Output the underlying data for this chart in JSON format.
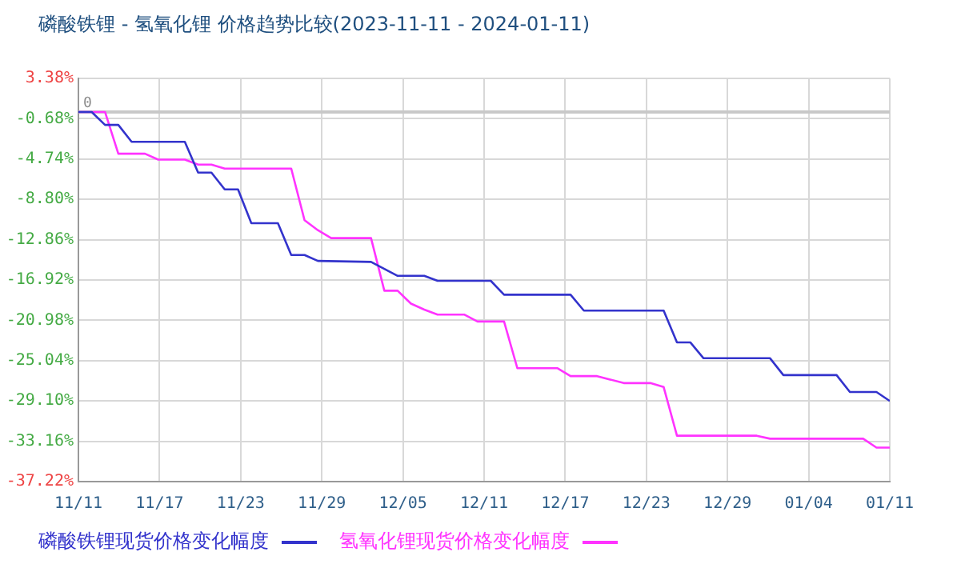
{
  "chart_data": {
    "type": "line",
    "title": "磷酸铁锂 - 氢氧化锂 价格趋势比较(2023-11-11 - 2024-01-11)",
    "series": [
      {
        "name": "磷酸铁锂现货价格变化幅度",
        "color": "#3333cc",
        "x": [
          "2023-11-11",
          "2023-11-12",
          "2023-11-13",
          "2023-11-14",
          "2023-11-15",
          "2023-11-19",
          "2023-11-20",
          "2023-11-21",
          "2023-11-22",
          "2023-11-23",
          "2023-11-24",
          "2023-11-26",
          "2023-11-27",
          "2023-11-28",
          "2023-11-29",
          "2023-12-03",
          "2023-12-05",
          "2023-12-07",
          "2023-12-08",
          "2023-12-12",
          "2023-12-13",
          "2023-12-18",
          "2023-12-19",
          "2023-12-25",
          "2023-12-26",
          "2023-12-27",
          "2023-12-28",
          "2024-01-02",
          "2024-01-03",
          "2024-01-07",
          "2024-01-08",
          "2024-01-10",
          "2024-01-11"
        ],
        "values": [
          0,
          0,
          -1.3,
          -1.3,
          -3.0,
          -3.0,
          -6.1,
          -6.1,
          -7.8,
          -7.8,
          -11.2,
          -11.2,
          -14.4,
          -14.4,
          -15.0,
          -15.1,
          -16.5,
          -16.5,
          -17.0,
          -17.0,
          -18.4,
          -18.4,
          -20.0,
          -20.0,
          -23.2,
          -23.2,
          -24.8,
          -24.8,
          -26.5,
          -26.5,
          -28.2,
          -28.2,
          -29.1
        ]
      },
      {
        "name": "氢氧化锂现货价格变化幅度",
        "color": "#ff33ff",
        "x": [
          "2023-11-11",
          "2023-11-13",
          "2023-11-14",
          "2023-11-16",
          "2023-11-17",
          "2023-11-19",
          "2023-11-20",
          "2023-11-21",
          "2023-11-22",
          "2023-11-27",
          "2023-11-28",
          "2023-11-29",
          "2023-11-30",
          "2023-12-03",
          "2023-12-04",
          "2023-12-05",
          "2023-12-06",
          "2023-12-07",
          "2023-12-08",
          "2023-12-10",
          "2023-12-11",
          "2023-12-13",
          "2023-12-14",
          "2023-12-17",
          "2023-12-18",
          "2023-12-20",
          "2023-12-22",
          "2023-12-24",
          "2023-12-25",
          "2023-12-26",
          "2024-01-01",
          "2024-01-02",
          "2024-01-09",
          "2024-01-10",
          "2024-01-11"
        ],
        "values": [
          0,
          0,
          -4.2,
          -4.2,
          -4.8,
          -4.8,
          -5.3,
          -5.3,
          -5.7,
          -5.7,
          -10.9,
          -11.9,
          -12.7,
          -12.7,
          -18.0,
          -18.0,
          -19.3,
          -19.9,
          -20.4,
          -20.4,
          -21.1,
          -21.1,
          -25.8,
          -25.8,
          -26.6,
          -26.6,
          -27.3,
          -27.3,
          -27.7,
          -32.6,
          -32.6,
          -32.9,
          -32.9,
          -33.8,
          -33.8
        ]
      }
    ],
    "xlim": [
      "2023-11-11",
      "2024-01-11"
    ],
    "xticks": [
      {
        "value": "2023-11-11",
        "label": "11/11"
      },
      {
        "value": "2023-11-17T02:24",
        "label": "11/17"
      },
      {
        "value": "2023-11-23T04:48",
        "label": "11/23"
      },
      {
        "value": "2023-11-29T07:12",
        "label": "11/29"
      },
      {
        "value": "2023-12-05T09:36",
        "label": "12/05"
      },
      {
        "value": "2023-12-11T12:00",
        "label": "12/11"
      },
      {
        "value": "2023-12-17T14:24",
        "label": "12/17"
      },
      {
        "value": "2023-12-23T16:48",
        "label": "12/23"
      },
      {
        "value": "2023-12-29T19:12",
        "label": "12/29"
      },
      {
        "value": "2024-01-04T21:36",
        "label": "01/04"
      },
      {
        "value": "2024-01-11",
        "label": "01/11"
      }
    ],
    "ylim": [
      -37.22,
      3.38
    ],
    "yticks": [
      {
        "value": 3.38,
        "label": "3.38%"
      },
      {
        "value": -0.68,
        "label": "-0.68%"
      },
      {
        "value": -4.74,
        "label": "-4.74%"
      },
      {
        "value": -8.8,
        "label": "-8.80%"
      },
      {
        "value": -12.86,
        "label": "-12.86%"
      },
      {
        "value": -16.92,
        "label": "-16.92%"
      },
      {
        "value": -20.98,
        "label": "-20.98%"
      },
      {
        "value": -25.04,
        "label": "-25.04%"
      },
      {
        "value": -29.1,
        "label": "-29.10%"
      },
      {
        "value": -33.16,
        "label": "-33.16%"
      },
      {
        "value": -37.22,
        "label": "-37.22%"
      }
    ],
    "ref_lines": [
      {
        "axis": "y",
        "value": 0,
        "label": "0",
        "color": "#c8c8c8"
      }
    ],
    "grid": true,
    "legend": "bottom",
    "marker": "none",
    "line_style": "solid"
  }
}
